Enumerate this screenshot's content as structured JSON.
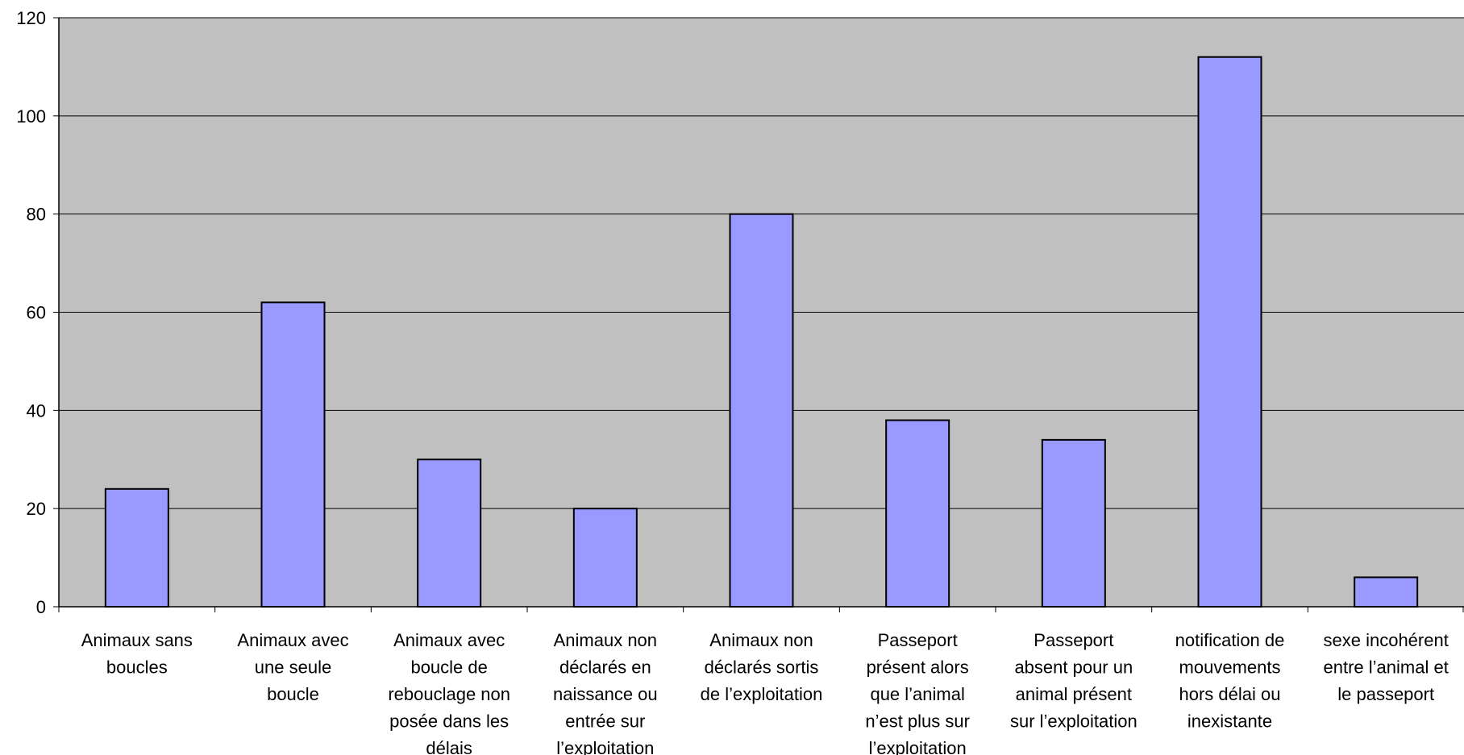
{
  "chart_data": {
    "type": "bar",
    "title": "",
    "xlabel": "",
    "ylabel": "",
    "ylim": [
      0,
      120
    ],
    "yticks": [
      0,
      20,
      40,
      60,
      80,
      100,
      120
    ],
    "grid": true,
    "legend": "none",
    "colors": {
      "bar": "#9999ff",
      "plot_bg": "#c0c0c0",
      "outline": "#000000"
    },
    "categories": [
      "Animaux sans boucles",
      "Animaux avec une seule boucle",
      "Animaux avec boucle de rebouclage non posée dans les délais",
      "Animaux non déclarés en naissance ou entrée sur l’exploitation",
      "Animaux non déclarés sortis de l’exploitation",
      "Passeport présent alors que l’animal n’est plus sur l’exploitation",
      "Passeport absent pour un animal présent sur l’exploitation",
      "notification de mouvements hors délai ou inexistante",
      "sexe incohérent entre l’animal et le passeport"
    ],
    "category_lines": [
      [
        "Animaux sans",
        "boucles"
      ],
      [
        "Animaux avec",
        "une seule",
        "boucle"
      ],
      [
        "Animaux avec",
        "boucle de",
        "rebouclage non",
        "posée dans les",
        "délais"
      ],
      [
        "Animaux non",
        "déclarés en",
        "naissance ou",
        "entrée sur",
        "l’exploitation"
      ],
      [
        "Animaux non",
        "déclarés sortis",
        "de l’exploitation"
      ],
      [
        "Passeport",
        "présent alors",
        "que l’animal",
        "n’est plus sur",
        "l’exploitation"
      ],
      [
        "Passeport",
        "absent pour un",
        "animal présent",
        "sur l’exploitation"
      ],
      [
        "notification de",
        "mouvements",
        "hors délai ou",
        "inexistante"
      ],
      [
        "sexe incohérent",
        "entre l’animal et",
        "le passeport"
      ]
    ],
    "values": [
      24,
      62,
      30,
      20,
      80,
      38,
      34,
      112,
      6
    ]
  }
}
